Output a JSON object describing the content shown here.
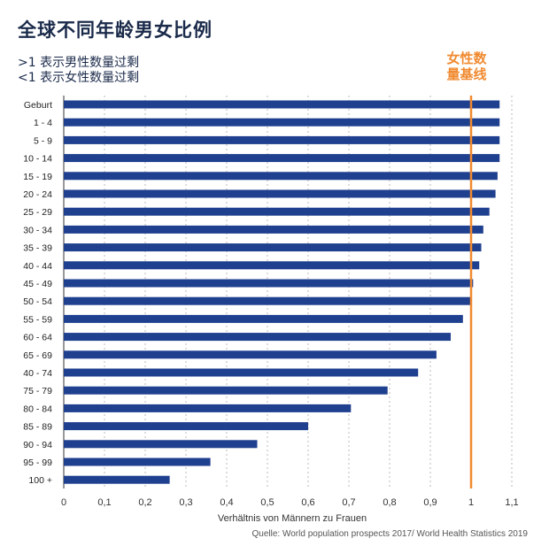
{
  "title": "全球不同年龄男女比例",
  "subtitle_line1": ">1 表示男性数量过剩",
  "subtitle_line2": "<1 表示女性数量过剩",
  "baseline_label_line1": "女性数",
  "baseline_label_line2": "量基线",
  "source": "Quelle: World population prospects 2017/ World Health Statistics 2019",
  "colors": {
    "bar": "#1f3f8f",
    "baseline": "#f08a30",
    "grid": "#bbbbbb",
    "text": "#1a2a4a"
  },
  "chart_data": {
    "type": "bar",
    "orientation": "horizontal",
    "categories": [
      "Geburt",
      "1 - 4",
      "5 - 9",
      "10 - 14",
      "15 - 19",
      "20 - 24",
      "25 - 29",
      "30 - 34",
      "35 - 39",
      "40 - 44",
      "45 - 49",
      "50 - 54",
      "55 - 59",
      "60 - 64",
      "65 - 69",
      "40 - 74",
      "75 - 79",
      "80 - 84",
      "85 - 89",
      "90 - 94",
      "95 - 99",
      "100 +"
    ],
    "values": [
      1.07,
      1.07,
      1.07,
      1.07,
      1.065,
      1.06,
      1.045,
      1.03,
      1.025,
      1.02,
      1.005,
      1.0,
      0.98,
      0.95,
      0.915,
      0.87,
      0.795,
      0.705,
      0.6,
      0.475,
      0.36,
      0.26
    ],
    "xlabel": "Verhältnis von Männern zu Frauen",
    "xlim": [
      0,
      1.1
    ],
    "xticks": [
      0,
      0.1,
      0.2,
      0.3,
      0.4,
      0.5,
      0.6,
      0.7,
      0.8,
      0.9,
      1,
      1.1
    ],
    "xtick_labels": [
      "0",
      "0,1",
      "0,2",
      "0,3",
      "0,4",
      "0,5",
      "0,6",
      "0,7",
      "0,8",
      "0,9",
      "1",
      "1,1"
    ],
    "reference_line": 1,
    "grid": "vertical dashed"
  }
}
